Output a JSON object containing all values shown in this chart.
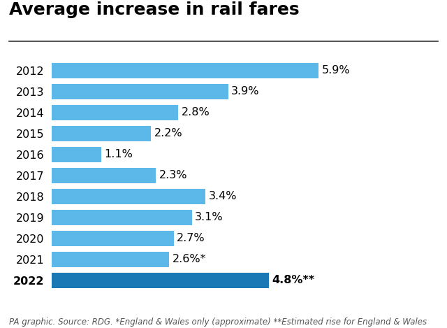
{
  "title": "Average increase in rail fares",
  "years": [
    "2012",
    "2013",
    "2014",
    "2015",
    "2016",
    "2017",
    "2018",
    "2019",
    "2020",
    "2021",
    "2022"
  ],
  "values": [
    5.9,
    3.9,
    2.8,
    2.2,
    1.1,
    2.3,
    3.4,
    3.1,
    2.7,
    2.6,
    4.8
  ],
  "labels": [
    "5.9%",
    "3.9%",
    "2.8%",
    "2.2%",
    "1.1%",
    "2.3%",
    "3.4%",
    "3.1%",
    "2.7%",
    "2.6%*",
    "4.8%**"
  ],
  "bar_colors": [
    "#5BB8E8",
    "#5BB8E8",
    "#5BB8E8",
    "#5BB8E8",
    "#5BB8E8",
    "#5BB8E8",
    "#5BB8E8",
    "#5BB8E8",
    "#5BB8E8",
    "#5BB8E8",
    "#1A78B4"
  ],
  "year_fontweights": [
    "normal",
    "normal",
    "normal",
    "normal",
    "normal",
    "normal",
    "normal",
    "normal",
    "normal",
    "normal",
    "bold"
  ],
  "label_fontweights": [
    "normal",
    "normal",
    "normal",
    "normal",
    "normal",
    "normal",
    "normal",
    "normal",
    "normal",
    "normal",
    "bold"
  ],
  "footnote": "PA graphic. Source: RDG. *England & Wales only (approximate) **Estimated rise for England & Wales",
  "background_color": "#FFFFFF",
  "xlim": [
    0,
    7.2
  ],
  "bar_height": 0.72,
  "title_fontsize": 18,
  "tick_fontsize": 11.5,
  "label_fontsize": 11.5,
  "footnote_fontsize": 8.5
}
